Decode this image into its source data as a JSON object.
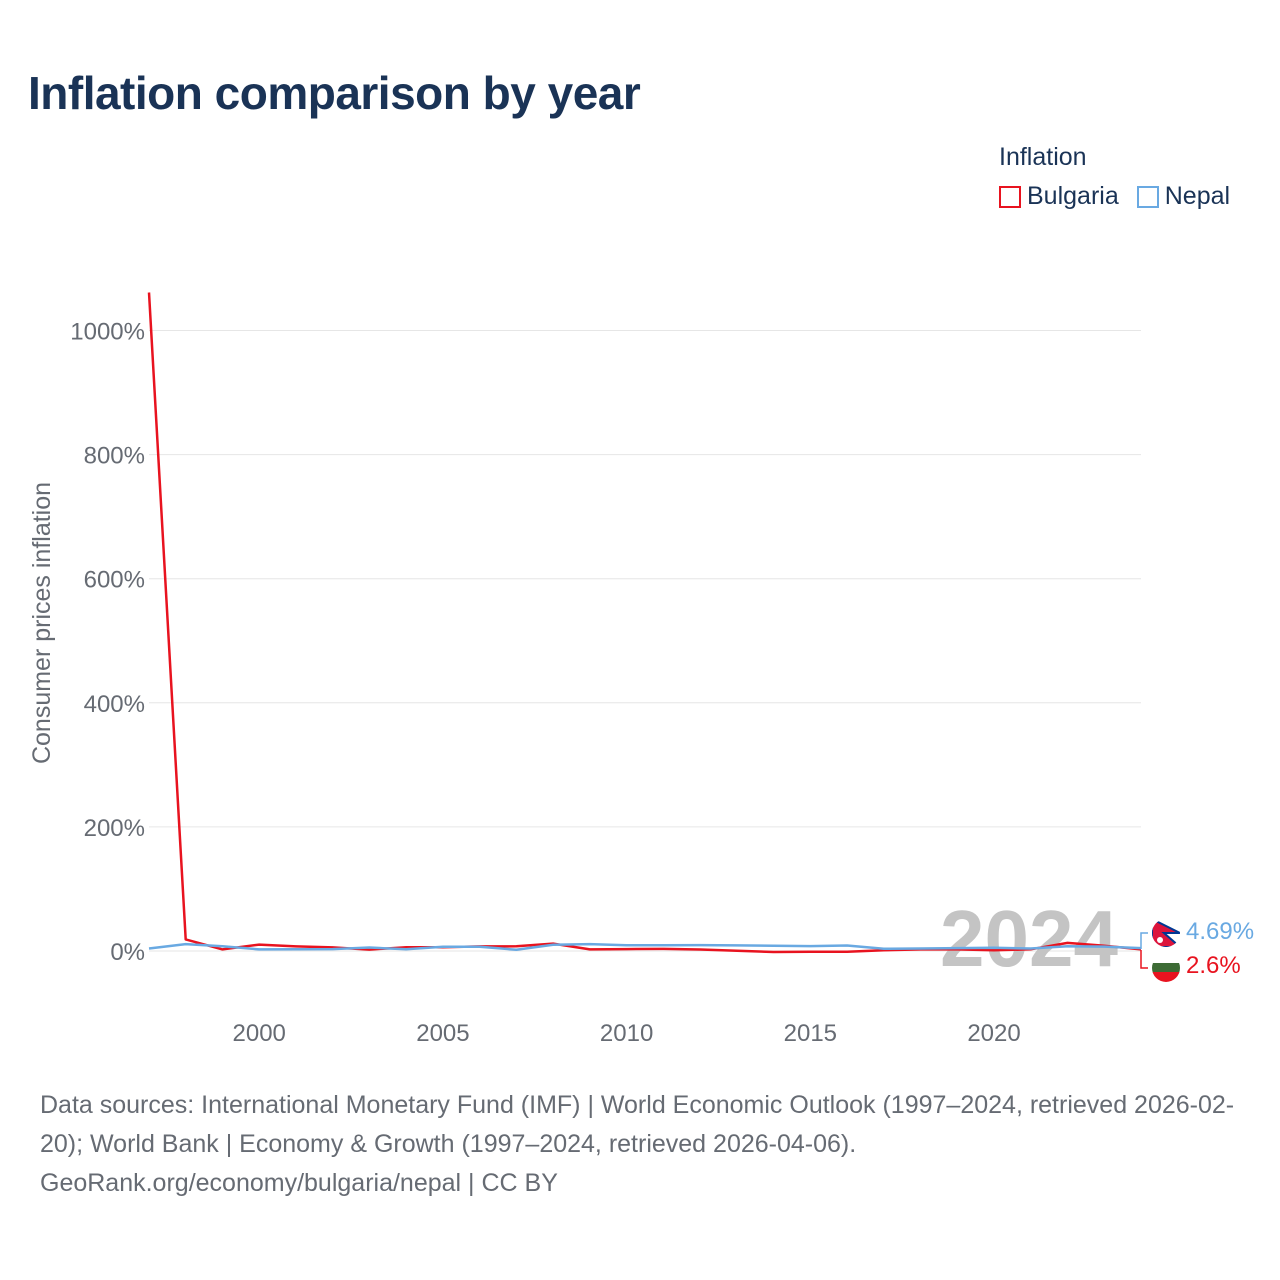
{
  "title": "Inflation comparison by year",
  "legend": {
    "title": "Inflation",
    "items": [
      {
        "label": "Bulgaria",
        "color": "#e8131f"
      },
      {
        "label": "Nepal",
        "color": "#69a9e2"
      }
    ]
  },
  "chart_data": {
    "type": "line",
    "title": "Inflation comparison by year",
    "xlabel": "",
    "ylabel": "Consumer prices inflation",
    "xlim": [
      1997,
      2024
    ],
    "ylim": [
      -80,
      1060
    ],
    "y_ticks": [
      0,
      200,
      400,
      600,
      800,
      1000
    ],
    "y_tick_labels": [
      "0%",
      "200%",
      "400%",
      "600%",
      "800%",
      "1000%"
    ],
    "x_ticks": [
      2000,
      2005,
      2010,
      2015,
      2020
    ],
    "x_tick_labels": [
      "2000",
      "2005",
      "2010",
      "2015",
      "2020"
    ],
    "grid": true,
    "year_watermark": "2024",
    "x": [
      1997,
      1998,
      1999,
      2000,
      2001,
      2002,
      2003,
      2004,
      2005,
      2006,
      2007,
      2008,
      2009,
      2010,
      2011,
      2012,
      2013,
      2014,
      2015,
      2016,
      2017,
      2018,
      2019,
      2020,
      2021,
      2022,
      2023,
      2024
    ],
    "series": [
      {
        "name": "Bulgaria",
        "color": "#e8131f",
        "values": [
          1061.2,
          18.7,
          2.6,
          10.3,
          7.4,
          5.8,
          2.3,
          6.1,
          6.0,
          7.4,
          7.6,
          12.0,
          2.5,
          3.0,
          3.4,
          2.4,
          0.4,
          -1.6,
          -1.1,
          -1.3,
          1.2,
          2.6,
          2.5,
          1.2,
          2.8,
          13.0,
          8.6,
          2.6
        ]
      },
      {
        "name": "Nepal",
        "color": "#69a9e2",
        "values": [
          4.0,
          11.2,
          7.5,
          2.5,
          2.7,
          3.0,
          5.7,
          2.8,
          6.8,
          6.9,
          2.0,
          10.0,
          11.1,
          9.3,
          9.3,
          9.5,
          9.0,
          8.4,
          7.9,
          8.8,
          3.6,
          4.1,
          4.6,
          5.1,
          4.1,
          7.7,
          7.1,
          4.69
        ]
      }
    ],
    "end_labels": [
      {
        "name": "Nepal",
        "text": "4.69%",
        "color": "#69a9e2"
      },
      {
        "name": "Bulgaria",
        "text": "2.6%",
        "color": "#e8131f"
      }
    ]
  },
  "footer": {
    "sources": "Data sources: International Monetary Fund (IMF) | World Economic Outlook (1997–2024, retrieved 2026-02-20); World Bank | Economy & Growth (1997–2024, retrieved 2026-04-06).",
    "credit": "GeoRank.org/economy/bulgaria/nepal | CC BY"
  }
}
